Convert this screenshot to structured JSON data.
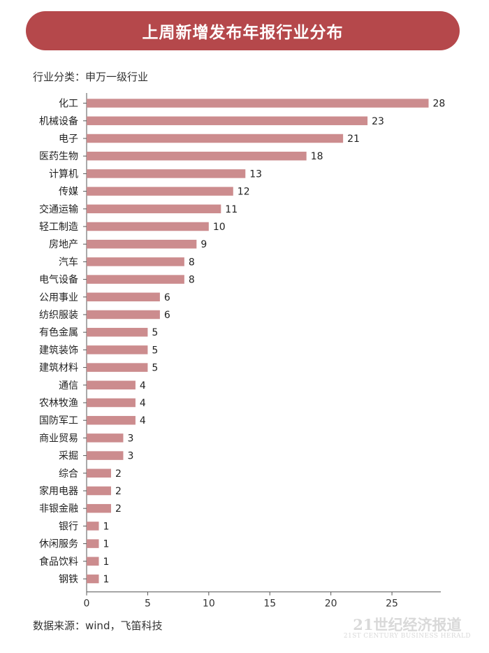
{
  "header": {
    "title": "上周新增发布年报行业分布",
    "subtitle": "行业分类：申万一级行业"
  },
  "footer": {
    "source": "数据来源：wind，飞笛科技",
    "watermark_main": "21世纪经济报道",
    "watermark_sub": "21ST CENTURY BUSINESS HERALD"
  },
  "colors": {
    "banner": "#b5484b",
    "bar": "#cc8c8e"
  },
  "chart_data": {
    "type": "bar",
    "orientation": "horizontal",
    "title": "上周新增发布年报行业分布",
    "categories": [
      "化工",
      "机械设备",
      "电子",
      "医药生物",
      "计算机",
      "传媒",
      "交通运输",
      "轻工制造",
      "房地产",
      "汽车",
      "电气设备",
      "公用事业",
      "纺织服装",
      "有色金属",
      "建筑装饰",
      "建筑材料",
      "通信",
      "农林牧渔",
      "国防军工",
      "商业贸易",
      "采掘",
      "综合",
      "家用电器",
      "非银金融",
      "银行",
      "休闲服务",
      "食品饮料",
      "钢铁"
    ],
    "values": [
      28,
      23,
      21,
      18,
      13,
      12,
      11,
      10,
      9,
      8,
      8,
      6,
      6,
      5,
      5,
      5,
      4,
      4,
      4,
      3,
      3,
      2,
      2,
      2,
      1,
      1,
      1,
      1
    ],
    "xlim": [
      0,
      29
    ],
    "xticks": [
      0,
      5,
      10,
      15,
      20,
      25
    ],
    "xlabel": "",
    "ylabel": "",
    "grid": false,
    "data_labels": true
  }
}
